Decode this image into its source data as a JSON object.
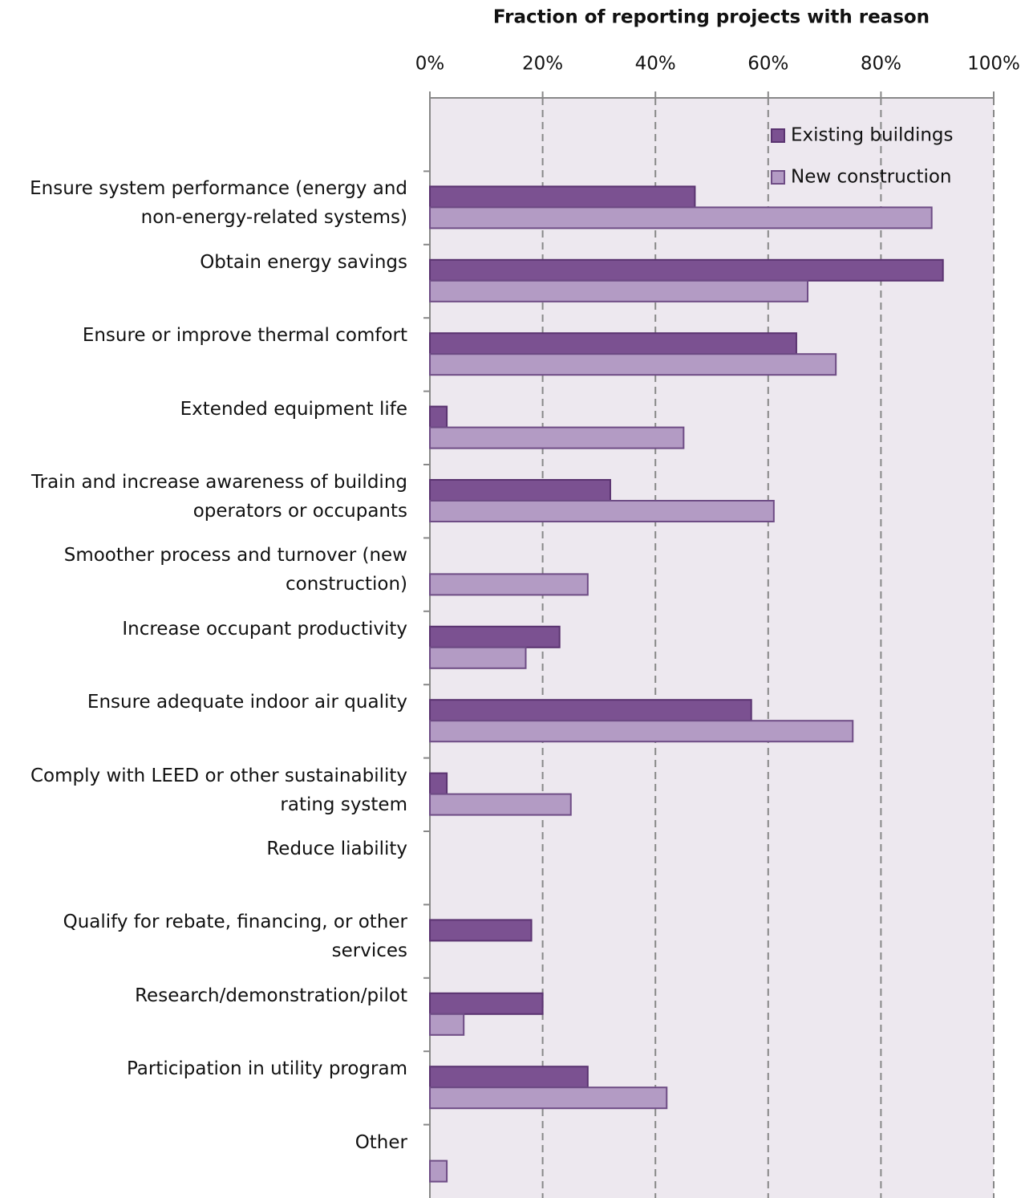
{
  "chart_data": {
    "type": "barh",
    "title": "Fraction of reporting projects with reason",
    "categories": [
      "Ensure system performance (energy and non-energy-related systems)",
      "Obtain energy savings",
      "Ensure or improve thermal comfort",
      "Extended equipment life",
      "Train and increase awareness of building operators or occupants",
      "Smoother process and turnover (new construction)",
      "Increase occupant productivity",
      "Ensure adequate indoor air quality",
      "Comply with LEED or other sustainability rating system",
      "Reduce liability",
      "Qualify for rebate, financing, or other services",
      "Research/demonstration/pilot",
      "Participation in utility program",
      "Other"
    ],
    "series": [
      {
        "name": "Existing buildings",
        "color": "#7b5191",
        "values": [
          47,
          91,
          65,
          3,
          32,
          0,
          23,
          57,
          3,
          0,
          18,
          20,
          28,
          0
        ]
      },
      {
        "name": "New construction",
        "color": "#b39bc4",
        "values": [
          89,
          67,
          72,
          45,
          61,
          28,
          17,
          75,
          25,
          0,
          0,
          6,
          42,
          3
        ]
      }
    ],
    "xlim": [
      0,
      100
    ],
    "xticks": [
      {
        "value": 0,
        "label": "0%"
      },
      {
        "value": 20,
        "label": "20%"
      },
      {
        "value": 40,
        "label": "40%"
      },
      {
        "value": 60,
        "label": "60%"
      },
      {
        "value": 80,
        "label": "80%"
      },
      {
        "value": 100,
        "label": "100%"
      }
    ],
    "grid": true,
    "legend": "upper right"
  }
}
